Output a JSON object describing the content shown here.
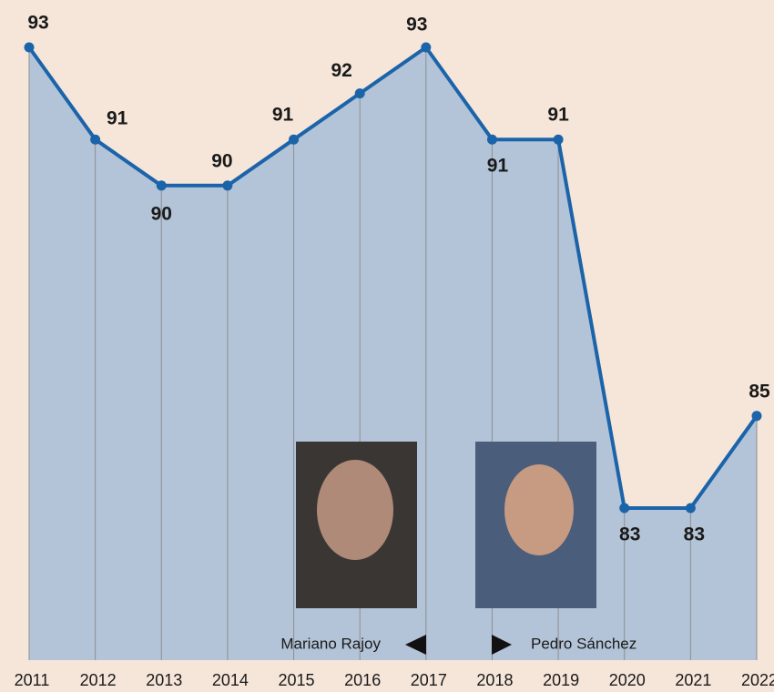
{
  "chart_data": {
    "type": "area_line",
    "categories": [
      "2011",
      "2012",
      "2013",
      "2014",
      "2015",
      "2016",
      "2017",
      "2018",
      "2019",
      "2020",
      "2021",
      "2022"
    ],
    "values": [
      93,
      91,
      90,
      90,
      91,
      92,
      93,
      91,
      91,
      83,
      83,
      85
    ],
    "color": "#1b64a9",
    "area_color": "#b3c3d8",
    "ylim": [
      79.7,
      93
    ],
    "annotations": [
      "Mariano Rajoy",
      "Pedro Sánchez"
    ]
  }
}
